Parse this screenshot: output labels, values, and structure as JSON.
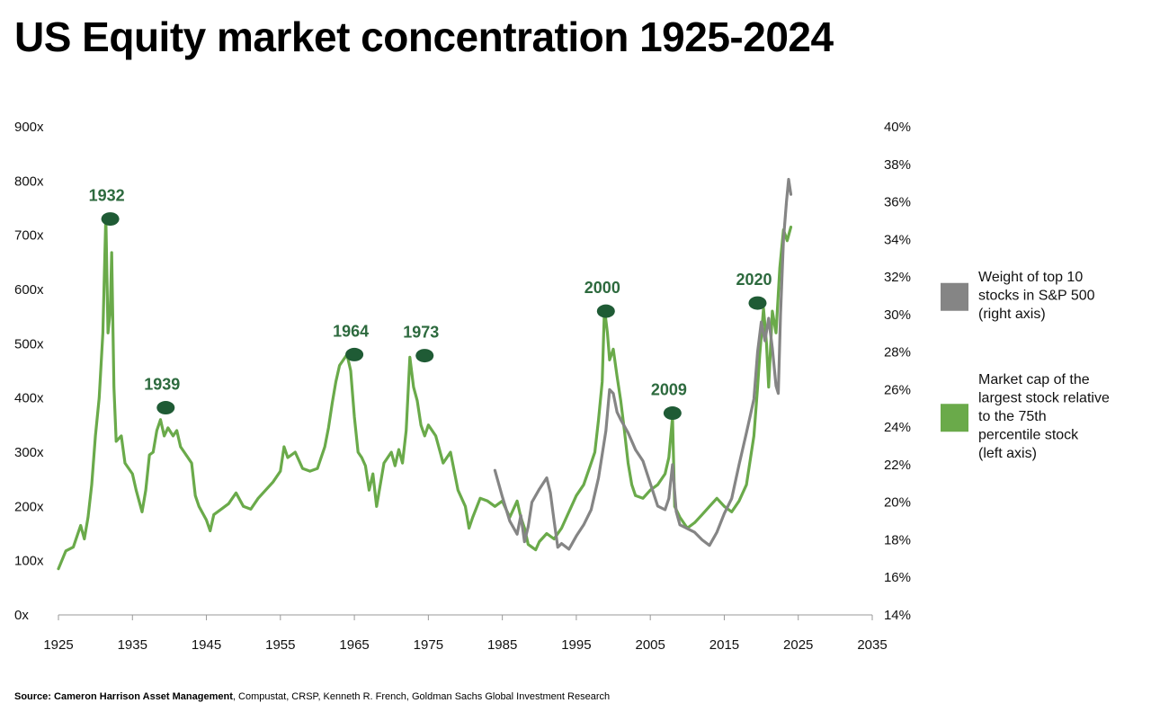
{
  "chart_data": {
    "type": "line",
    "title": "US Equity market concentration 1925-2024",
    "x_axis": {
      "min": 1925,
      "max": 2035,
      "ticks": [
        1925,
        1935,
        1945,
        1955,
        1965,
        1975,
        1985,
        1995,
        2005,
        2015,
        2025,
        2035
      ]
    },
    "y_left": {
      "min": 0,
      "max": 900,
      "ticks": [
        0,
        100,
        200,
        300,
        400,
        500,
        600,
        700,
        800,
        900
      ],
      "tick_labels": [
        "0x",
        "100x",
        "200x",
        "300x",
        "400x",
        "500x",
        "600x",
        "700x",
        "800x",
        "900x"
      ]
    },
    "y_right": {
      "min": 14,
      "max": 40,
      "ticks": [
        14,
        16,
        18,
        20,
        22,
        24,
        26,
        28,
        30,
        32,
        34,
        36,
        38,
        40
      ],
      "tick_labels": [
        "14%",
        "16%",
        "18%",
        "20%",
        "22%",
        "24%",
        "26%",
        "28%",
        "30%",
        "32%",
        "34%",
        "36%",
        "38%",
        "40%"
      ]
    },
    "grid": false,
    "legend_position": "right",
    "series": [
      {
        "name": "Weight of top 10 stocks in S&P 500 (right axis)",
        "axis": "right",
        "color": "#858585",
        "points": [
          [
            1984.0,
            21.7
          ],
          [
            1985.0,
            20.3
          ],
          [
            1986.0,
            19.0
          ],
          [
            1987.0,
            18.3
          ],
          [
            1987.5,
            19.3
          ],
          [
            1988.0,
            17.9
          ],
          [
            1988.5,
            18.7
          ],
          [
            1989.0,
            20.0
          ],
          [
            1990.0,
            20.7
          ],
          [
            1991.0,
            21.3
          ],
          [
            1991.5,
            20.5
          ],
          [
            1992.0,
            19.0
          ],
          [
            1992.5,
            17.6
          ],
          [
            1993.0,
            17.8
          ],
          [
            1994.0,
            17.5
          ],
          [
            1995.0,
            18.2
          ],
          [
            1996.0,
            18.8
          ],
          [
            1997.0,
            19.6
          ],
          [
            1998.0,
            21.3
          ],
          [
            1999.0,
            23.8
          ],
          [
            1999.5,
            26.0
          ],
          [
            2000.0,
            25.8
          ],
          [
            2000.5,
            24.8
          ],
          [
            2001.0,
            24.4
          ],
          [
            2002.0,
            23.7
          ],
          [
            2003.0,
            22.8
          ],
          [
            2004.0,
            22.2
          ],
          [
            2005.0,
            21.0
          ],
          [
            2006.0,
            19.8
          ],
          [
            2007.0,
            19.6
          ],
          [
            2007.5,
            20.2
          ],
          [
            2008.0,
            22.0
          ],
          [
            2008.5,
            19.5
          ],
          [
            2009.0,
            18.8
          ],
          [
            2010.0,
            18.6
          ],
          [
            2011.0,
            18.4
          ],
          [
            2012.0,
            18.0
          ],
          [
            2013.0,
            17.7
          ],
          [
            2014.0,
            18.4
          ],
          [
            2015.0,
            19.4
          ],
          [
            2016.0,
            20.2
          ],
          [
            2017.0,
            22.0
          ],
          [
            2018.0,
            23.7
          ],
          [
            2018.5,
            24.6
          ],
          [
            2019.0,
            25.5
          ],
          [
            2019.5,
            28.0
          ],
          [
            2020.0,
            29.6
          ],
          [
            2020.5,
            28.6
          ],
          [
            2021.0,
            29.8
          ],
          [
            2021.5,
            28.2
          ],
          [
            2022.0,
            26.2
          ],
          [
            2022.3,
            25.8
          ],
          [
            2022.6,
            30.0
          ],
          [
            2023.0,
            34.0
          ],
          [
            2023.4,
            36.0
          ],
          [
            2023.7,
            37.2
          ],
          [
            2024.0,
            36.4
          ]
        ]
      },
      {
        "name": "Market cap of the largest stock relative to the 75th percentile stock (left axis)",
        "axis": "left",
        "color": "#6aaa4a",
        "points": [
          [
            1925.0,
            85
          ],
          [
            1926.0,
            118
          ],
          [
            1927.0,
            125
          ],
          [
            1928.0,
            165
          ],
          [
            1928.5,
            140
          ],
          [
            1929.0,
            180
          ],
          [
            1929.5,
            240
          ],
          [
            1930.0,
            330
          ],
          [
            1930.5,
            400
          ],
          [
            1931.0,
            520
          ],
          [
            1931.4,
            735
          ],
          [
            1931.7,
            520
          ],
          [
            1932.0,
            560
          ],
          [
            1932.2,
            668
          ],
          [
            1932.5,
            420
          ],
          [
            1932.8,
            320
          ],
          [
            1933.5,
            330
          ],
          [
            1934.0,
            280
          ],
          [
            1935.0,
            260
          ],
          [
            1935.5,
            230
          ],
          [
            1936.0,
            205
          ],
          [
            1936.3,
            190
          ],
          [
            1936.8,
            230
          ],
          [
            1937.3,
            295
          ],
          [
            1937.8,
            300
          ],
          [
            1938.3,
            340
          ],
          [
            1938.8,
            360
          ],
          [
            1939.3,
            330
          ],
          [
            1939.8,
            345
          ],
          [
            1940.5,
            330
          ],
          [
            1941.0,
            340
          ],
          [
            1941.5,
            310
          ],
          [
            1942.0,
            300
          ],
          [
            1942.5,
            290
          ],
          [
            1943.0,
            280
          ],
          [
            1943.5,
            220
          ],
          [
            1944.0,
            200
          ],
          [
            1945.0,
            175
          ],
          [
            1945.5,
            155
          ],
          [
            1946.0,
            185
          ],
          [
            1947.0,
            195
          ],
          [
            1948.0,
            205
          ],
          [
            1949.0,
            225
          ],
          [
            1950.0,
            200
          ],
          [
            1951.0,
            195
          ],
          [
            1952.0,
            215
          ],
          [
            1953.0,
            230
          ],
          [
            1954.0,
            245
          ],
          [
            1955.0,
            265
          ],
          [
            1955.5,
            310
          ],
          [
            1956.0,
            290
          ],
          [
            1957.0,
            300
          ],
          [
            1958.0,
            270
          ],
          [
            1959.0,
            265
          ],
          [
            1960.0,
            270
          ],
          [
            1961.0,
            310
          ],
          [
            1961.5,
            345
          ],
          [
            1962.0,
            390
          ],
          [
            1962.5,
            430
          ],
          [
            1963.0,
            460
          ],
          [
            1963.5,
            470
          ],
          [
            1964.0,
            480
          ],
          [
            1964.5,
            450
          ],
          [
            1965.0,
            365
          ],
          [
            1965.5,
            300
          ],
          [
            1966.0,
            290
          ],
          [
            1966.5,
            275
          ],
          [
            1967.0,
            230
          ],
          [
            1967.5,
            260
          ],
          [
            1968.0,
            200
          ],
          [
            1969.0,
            280
          ],
          [
            1970.0,
            300
          ],
          [
            1970.5,
            275
          ],
          [
            1971.0,
            305
          ],
          [
            1971.5,
            280
          ],
          [
            1972.0,
            340
          ],
          [
            1972.5,
            475
          ],
          [
            1973.0,
            420
          ],
          [
            1973.5,
            395
          ],
          [
            1974.0,
            350
          ],
          [
            1974.5,
            330
          ],
          [
            1975.0,
            350
          ],
          [
            1976.0,
            330
          ],
          [
            1977.0,
            280
          ],
          [
            1978.0,
            300
          ],
          [
            1979.0,
            230
          ],
          [
            1980.0,
            200
          ],
          [
            1980.5,
            160
          ],
          [
            1981.0,
            180
          ],
          [
            1982.0,
            215
          ],
          [
            1983.0,
            210
          ],
          [
            1984.0,
            200
          ],
          [
            1985.0,
            210
          ],
          [
            1986.0,
            180
          ],
          [
            1987.0,
            210
          ],
          [
            1987.5,
            180
          ],
          [
            1988.0,
            160
          ],
          [
            1988.5,
            130
          ],
          [
            1989.0,
            125
          ],
          [
            1989.5,
            120
          ],
          [
            1990.0,
            135
          ],
          [
            1991.0,
            150
          ],
          [
            1992.0,
            140
          ],
          [
            1993.0,
            160
          ],
          [
            1994.0,
            190
          ],
          [
            1995.0,
            220
          ],
          [
            1996.0,
            240
          ],
          [
            1997.0,
            280
          ],
          [
            1997.5,
            300
          ],
          [
            1998.0,
            360
          ],
          [
            1998.5,
            430
          ],
          [
            1998.8,
            565
          ],
          [
            1999.2,
            520
          ],
          [
            1999.5,
            470
          ],
          [
            2000.0,
            490
          ],
          [
            2000.5,
            440
          ],
          [
            2001.0,
            395
          ],
          [
            2001.5,
            340
          ],
          [
            2002.0,
            280
          ],
          [
            2002.5,
            240
          ],
          [
            2003.0,
            220
          ],
          [
            2004.0,
            215
          ],
          [
            2005.0,
            230
          ],
          [
            2006.0,
            240
          ],
          [
            2007.0,
            260
          ],
          [
            2007.5,
            290
          ],
          [
            2008.0,
            365
          ],
          [
            2008.3,
            200
          ],
          [
            2009.0,
            180
          ],
          [
            2010.0,
            160
          ],
          [
            2011.0,
            170
          ],
          [
            2012.0,
            185
          ],
          [
            2013.0,
            200
          ],
          [
            2014.0,
            215
          ],
          [
            2015.0,
            200
          ],
          [
            2016.0,
            190
          ],
          [
            2017.0,
            210
          ],
          [
            2018.0,
            240
          ],
          [
            2019.0,
            330
          ],
          [
            2019.5,
            420
          ],
          [
            2019.8,
            480
          ],
          [
            2020.3,
            565
          ],
          [
            2020.7,
            500
          ],
          [
            2021.0,
            420
          ],
          [
            2021.5,
            560
          ],
          [
            2022.0,
            520
          ],
          [
            2022.5,
            640
          ],
          [
            2023.0,
            710
          ],
          [
            2023.5,
            690
          ],
          [
            2024.0,
            715
          ]
        ]
      }
    ],
    "annotations": [
      {
        "label": "1932",
        "x": 1932.0,
        "y": 730
      },
      {
        "label": "1939",
        "x": 1939.5,
        "y": 382
      },
      {
        "label": "1964",
        "x": 1965.0,
        "y": 480
      },
      {
        "label": "1973",
        "x": 1974.5,
        "y": 478
      },
      {
        "label": "2000",
        "x": 1999.0,
        "y": 560
      },
      {
        "label": "2009",
        "x": 2008.0,
        "y": 372
      },
      {
        "label": "2020",
        "x": 2019.5,
        "y": 575
      }
    ],
    "annotation_color": "#1f5b35",
    "legend": [
      {
        "series": 0,
        "color": "#858585",
        "lines": [
          "Weight of top 10",
          "stocks in S&P 500",
          "(right axis)"
        ]
      },
      {
        "series": 1,
        "color": "#6aaa4a",
        "lines": [
          "Market cap of the",
          "largest stock relative",
          "to the 75th",
          "percentile stock",
          "(left axis)"
        ]
      }
    ]
  },
  "source": {
    "bold": "Source: Cameron Harrison Asset Management",
    "rest": ", Compustat, CRSP, Kenneth R. French, Goldman Sachs Global Investment Research"
  }
}
